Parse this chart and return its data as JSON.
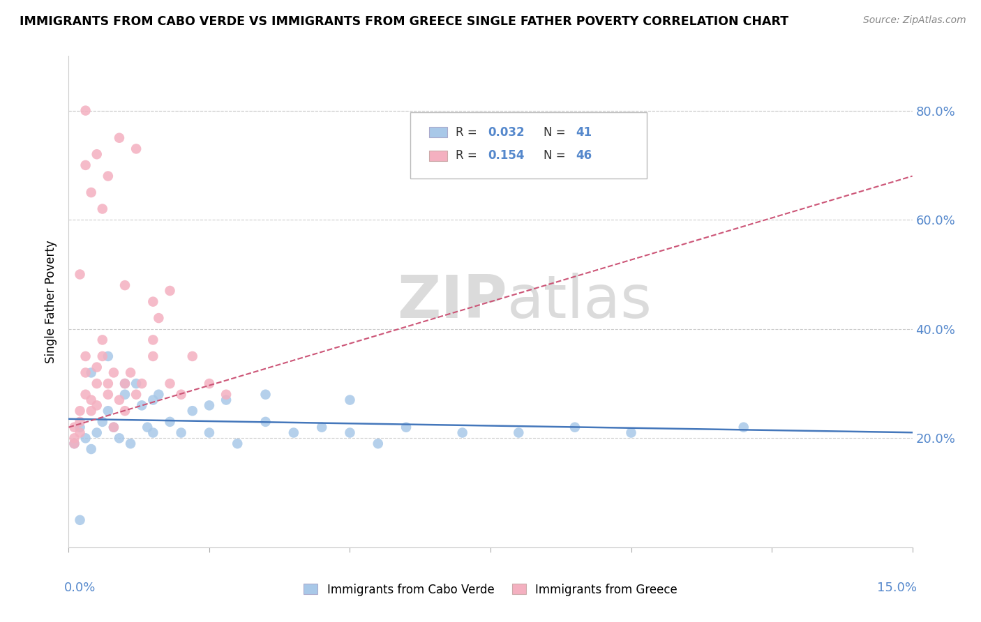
{
  "title": "IMMIGRANTS FROM CABO VERDE VS IMMIGRANTS FROM GREECE SINGLE FATHER POVERTY CORRELATION CHART",
  "source": "Source: ZipAtlas.com",
  "ylabel": "Single Father Poverty",
  "xlim": [
    0.0,
    0.15
  ],
  "ylim": [
    0.0,
    0.9
  ],
  "color_cabo": "#a8c8e8",
  "color_greece": "#f4b0c0",
  "trend_color_cabo": "#4477bb",
  "trend_color_greece": "#cc5577",
  "watermark_zip": "ZIP",
  "watermark_atlas": "atlas",
  "cabo_verde_x": [
    0.001,
    0.002,
    0.003,
    0.004,
    0.005,
    0.006,
    0.007,
    0.008,
    0.009,
    0.01,
    0.011,
    0.012,
    0.013,
    0.014,
    0.015,
    0.016,
    0.018,
    0.02,
    0.022,
    0.025,
    0.028,
    0.03,
    0.035,
    0.04,
    0.045,
    0.05,
    0.055,
    0.06,
    0.07,
    0.08,
    0.09,
    0.1,
    0.12,
    0.004,
    0.007,
    0.01,
    0.015,
    0.025,
    0.035,
    0.05,
    0.002
  ],
  "cabo_verde_y": [
    0.19,
    0.22,
    0.2,
    0.18,
    0.21,
    0.23,
    0.25,
    0.22,
    0.2,
    0.28,
    0.19,
    0.3,
    0.26,
    0.22,
    0.21,
    0.28,
    0.23,
    0.21,
    0.25,
    0.21,
    0.27,
    0.19,
    0.23,
    0.21,
    0.22,
    0.21,
    0.19,
    0.22,
    0.21,
    0.21,
    0.22,
    0.21,
    0.22,
    0.32,
    0.35,
    0.3,
    0.27,
    0.26,
    0.28,
    0.27,
    0.05
  ],
  "greece_x": [
    0.001,
    0.001,
    0.001,
    0.002,
    0.002,
    0.002,
    0.003,
    0.003,
    0.003,
    0.004,
    0.004,
    0.005,
    0.005,
    0.005,
    0.006,
    0.006,
    0.007,
    0.007,
    0.008,
    0.008,
    0.009,
    0.01,
    0.01,
    0.011,
    0.012,
    0.013,
    0.015,
    0.015,
    0.016,
    0.018,
    0.02,
    0.022,
    0.025,
    0.028,
    0.003,
    0.004,
    0.005,
    0.007,
    0.009,
    0.012,
    0.015,
    0.018,
    0.003,
    0.006,
    0.01,
    0.002
  ],
  "greece_y": [
    0.2,
    0.22,
    0.19,
    0.25,
    0.23,
    0.21,
    0.28,
    0.32,
    0.35,
    0.27,
    0.25,
    0.3,
    0.33,
    0.26,
    0.35,
    0.38,
    0.3,
    0.28,
    0.32,
    0.22,
    0.27,
    0.3,
    0.25,
    0.32,
    0.28,
    0.3,
    0.35,
    0.38,
    0.42,
    0.3,
    0.28,
    0.35,
    0.3,
    0.28,
    0.7,
    0.65,
    0.72,
    0.68,
    0.75,
    0.73,
    0.45,
    0.47,
    0.8,
    0.62,
    0.48,
    0.5
  ]
}
